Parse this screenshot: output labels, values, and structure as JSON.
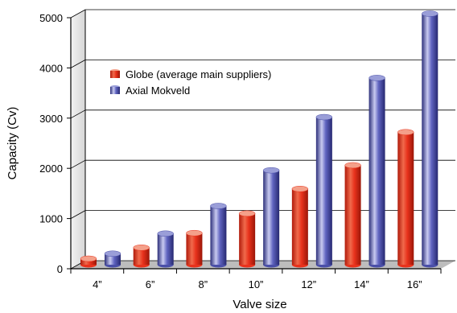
{
  "chart_data": {
    "type": "bar",
    "categories": [
      "4”",
      "6”",
      "8”",
      "10”",
      "12”",
      "14”",
      "16”"
    ],
    "series": [
      {
        "name": "Globe (average main suppliers)",
        "values": [
          120,
          340,
          630,
          1020,
          1510,
          1980,
          2640
        ],
        "color": "#e8321c"
      },
      {
        "name": "Axial Mokveld",
        "values": [
          220,
          620,
          1170,
          1880,
          2940,
          3720,
          5000
        ],
        "color": "#4a4fa8"
      }
    ],
    "title": "",
    "xlabel": "Valve size",
    "ylabel": "Capacity (Cv)",
    "ylim": [
      0,
      5000
    ],
    "yticks": [
      0,
      1000,
      2000,
      3000,
      4000,
      5000
    ],
    "grid": true,
    "legend_position": "upper-left"
  }
}
